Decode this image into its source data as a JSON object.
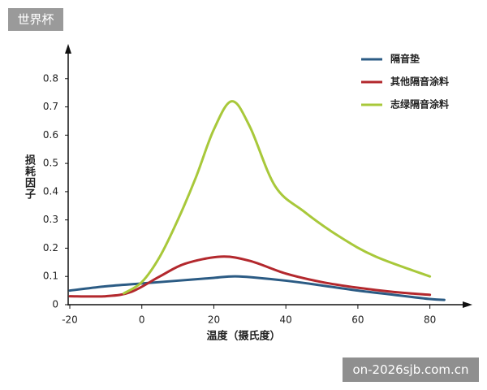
{
  "chart_data": {
    "type": "line",
    "x_label": "温度（摄氏度）",
    "y_label": "损耗因子",
    "xlim": [
      -20,
      90
    ],
    "ylim": [
      0,
      0.9
    ],
    "xticks": [
      -20,
      0,
      20,
      40,
      60,
      80
    ],
    "yticks": [
      0,
      0.1,
      0.2,
      0.3,
      0.4,
      0.5,
      0.6,
      0.7,
      0.8
    ],
    "grid": false,
    "legend": "top-right",
    "series": [
      {
        "name": "隔音垫",
        "color": "#2b5b84",
        "x": [
          -20,
          -10,
          0,
          10,
          20,
          27,
          40,
          50,
          60,
          70,
          80,
          84
        ],
        "values": [
          0.05,
          0.065,
          0.075,
          0.085,
          0.095,
          0.1,
          0.085,
          0.068,
          0.05,
          0.035,
          0.02,
          0.017
        ]
      },
      {
        "name": "其他隔音涂料",
        "color": "#b3282d",
        "x": [
          -20,
          -10,
          -3,
          5,
          12,
          22,
          30,
          40,
          50,
          60,
          70,
          80
        ],
        "values": [
          0.03,
          0.03,
          0.045,
          0.1,
          0.145,
          0.17,
          0.155,
          0.11,
          0.08,
          0.06,
          0.045,
          0.035
        ]
      },
      {
        "name": "志绿隔音涂料",
        "color": "#a8c83a",
        "x": [
          -5,
          0,
          5,
          10,
          15,
          20,
          25,
          30,
          37,
          45,
          55,
          65,
          80
        ],
        "values": [
          0.04,
          0.08,
          0.17,
          0.3,
          0.45,
          0.62,
          0.72,
          0.63,
          0.42,
          0.33,
          0.24,
          0.17,
          0.1
        ]
      }
    ]
  },
  "overlays": {
    "top_left": "世界杯",
    "bottom_right": "on-2026sjb.com.cn"
  }
}
